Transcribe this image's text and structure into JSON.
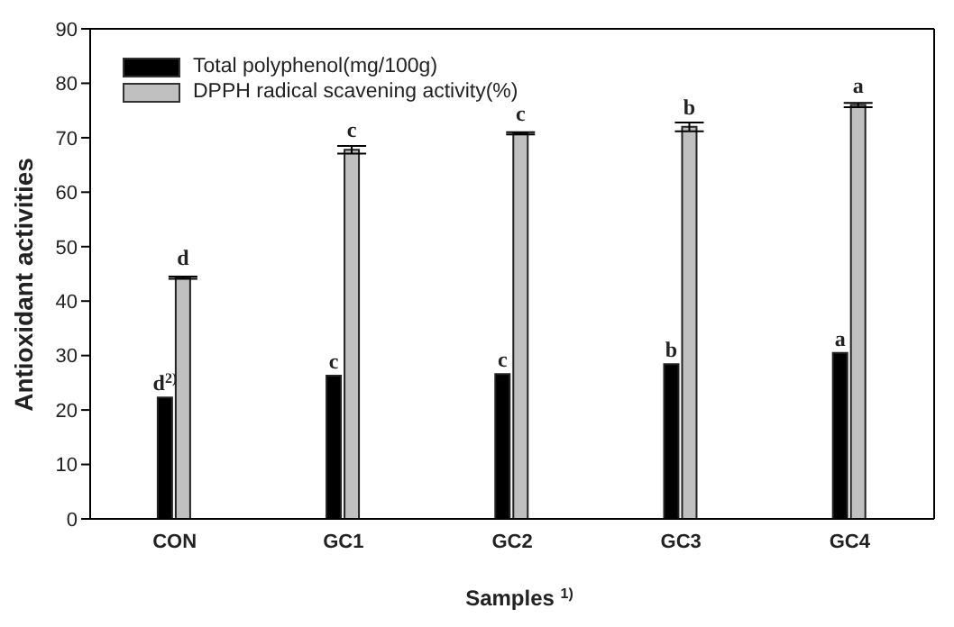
{
  "chart_data": {
    "type": "bar",
    "xlabel": "Samples $^{1)}$",
    "ylabel": "Antioxidant activities",
    "categories": [
      "CON",
      "GC1",
      "GC2",
      "GC3",
      "GC4"
    ],
    "series": [
      {
        "name": "Total polyphenol(mg/100g)",
        "color": "#000000",
        "values": [
          22.3,
          26.3,
          26.6,
          28.4,
          30.5
        ]
      },
      {
        "name": "DPPH radical scavening activity(%)",
        "color": "#c0c0c0",
        "values": [
          44.3,
          67.8,
          70.8,
          72.0,
          76.0
        ],
        "errors": [
          0.2,
          0.7,
          0.2,
          0.8,
          0.4
        ]
      }
    ],
    "annotations": [
      {
        "text": "d$^{2)}$",
        "x": "CON",
        "y": 22.3
      },
      {
        "text": "d",
        "x": "CON",
        "y": 44.3
      },
      {
        "text": "c",
        "x": "GC1",
        "y": 26.3
      },
      {
        "text": "c",
        "x": "GC1",
        "y": 67.8
      },
      {
        "text": "c",
        "x": "GC2",
        "y": 26.6
      },
      {
        "text": "c",
        "x": "GC2",
        "y": 70.8
      },
      {
        "text": "b",
        "x": "GC3",
        "y": 28.4
      },
      {
        "text": "b",
        "x": "GC3",
        "y": 72.0
      },
      {
        "text": "a",
        "x": "GC4",
        "y": 30.5
      },
      {
        "text": "a",
        "x": "GC4",
        "y": 76.0
      }
    ],
    "ylim": [
      0,
      90
    ],
    "yticks": [
      0,
      10,
      20,
      30,
      40,
      50,
      60,
      70,
      80,
      90
    ],
    "legend": "top left",
    "grid": false
  }
}
